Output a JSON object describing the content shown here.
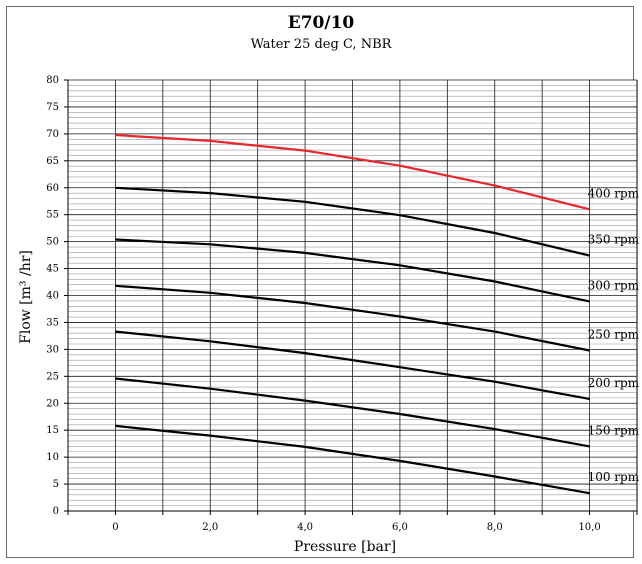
{
  "chart_data": {
    "type": "line",
    "title": "E70/10",
    "subtitle": "Water 25 deg C, NBR",
    "xlabel": "Pressure [bar]",
    "ylabel": "Flow [m³ /hr]",
    "xlim": [
      -1,
      11
    ],
    "ylim": [
      0,
      80
    ],
    "x_ticks": [
      0,
      2,
      4,
      6,
      8,
      10
    ],
    "x_tick_labels": [
      "0",
      "2,0",
      "4,0",
      "6,0",
      "8,0",
      "10,0"
    ],
    "y_ticks": [
      0,
      5,
      10,
      15,
      20,
      25,
      30,
      35,
      40,
      45,
      50,
      55,
      60,
      65,
      70,
      75,
      80
    ],
    "y_tick_labels": [
      "0",
      "5",
      "10",
      "15",
      "20",
      "25",
      "30",
      "35",
      "40",
      "45",
      "50",
      "55",
      "60",
      "65",
      "70",
      "75",
      "80"
    ],
    "grid": true,
    "x": [
      0,
      2,
      4,
      6,
      8,
      10
    ],
    "series": [
      {
        "name": "400 rpm",
        "color": "#e8262b",
        "values": [
          69.8,
          68.7,
          66.9,
          64.1,
          60.4,
          56.0
        ]
      },
      {
        "name": "350 rpm",
        "color": "#000000",
        "values": [
          60.0,
          59.0,
          57.4,
          54.9,
          51.6,
          47.4
        ]
      },
      {
        "name": "300 rpm",
        "color": "#000000",
        "values": [
          50.4,
          49.5,
          47.9,
          45.6,
          42.6,
          38.9
        ]
      },
      {
        "name": "250 rpm",
        "color": "#000000",
        "values": [
          41.8,
          40.5,
          38.6,
          36.1,
          33.3,
          29.8
        ]
      },
      {
        "name": "200 rpm",
        "color": "#000000",
        "values": [
          33.3,
          31.5,
          29.3,
          26.7,
          24.0,
          20.8
        ]
      },
      {
        "name": "150 rpm",
        "color": "#000000",
        "values": [
          24.6,
          22.7,
          20.5,
          18.0,
          15.2,
          12.0
        ]
      },
      {
        "name": "100 rpm",
        "color": "#000000",
        "values": [
          15.8,
          14.0,
          11.9,
          9.3,
          6.4,
          3.3
        ]
      }
    ]
  }
}
